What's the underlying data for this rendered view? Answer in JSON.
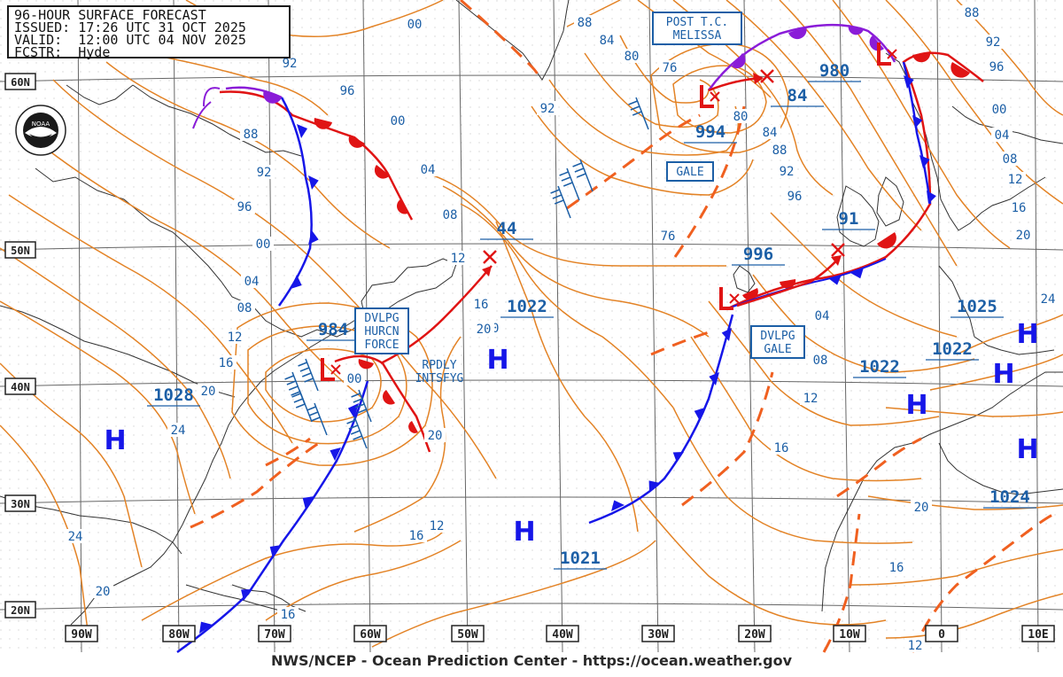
{
  "header": {
    "title": "96-HOUR SURFACE FORECAST",
    "issued": "ISSUED: 17:26 UTC 31 OCT 2025",
    "valid": "VALID:  12:00 UTC 04 NOV 2025",
    "forecaster": "FCSTR:  Hyde"
  },
  "logo": {
    "text": "NOAA"
  },
  "credit": "NWS/NCEP - Ocean Prediction Center - https://ocean.weather.gov",
  "colors": {
    "isobar": "#e38326",
    "isobar_label": "#1c5fa6",
    "grid": "#666666",
    "coast": "#333333",
    "cold_front": "#1616e8",
    "warm_front": "#e01414",
    "occluded_front": "#8a1cd8",
    "trough": "#f06020",
    "pressure_center": "#1616e8",
    "low_marker": "#e01414",
    "boxed_label": "#1c5fa6"
  },
  "axis_labels": {
    "longitude": [
      "90W",
      "80W",
      "70W",
      "60W",
      "50W",
      "40W",
      "30W",
      "20W",
      "10W",
      "0",
      "10E"
    ],
    "latitude": [
      "60N",
      "50N",
      "40N",
      "30N",
      "20N"
    ]
  },
  "isobar_labels": [
    "00",
    "92",
    "96",
    "88",
    "92",
    "96",
    "00",
    "04",
    "08",
    "12",
    "16",
    "20",
    "24",
    "00",
    "04",
    "08",
    "12",
    "16",
    "20",
    "24",
    "20",
    "16",
    "20",
    "92",
    "88",
    "84",
    "80",
    "76",
    "76",
    "80",
    "84",
    "88",
    "92",
    "96",
    "00",
    "04",
    "08",
    "12",
    "16",
    "20",
    "24",
    "04",
    "08",
    "12",
    "16",
    "20",
    "16",
    "12",
    "88",
    "92",
    "96",
    "00",
    "04",
    "08",
    "12",
    "16",
    "20"
  ],
  "pressure_centers": [
    {
      "type": "H",
      "value": "1028"
    },
    {
      "type": "H",
      "value": "1022"
    },
    {
      "type": "H",
      "value": "1021"
    },
    {
      "type": "L",
      "value": "984"
    },
    {
      "type": "L",
      "value": "994"
    },
    {
      "type": "L",
      "value": "996"
    },
    {
      "type": "L",
      "value": "980"
    },
    {
      "type": "H",
      "value": "1022"
    },
    {
      "type": "H",
      "value": "1022"
    },
    {
      "type": "H",
      "value": "1025"
    },
    {
      "type": "H",
      "value": "1024"
    },
    {
      "type": "X",
      "value": "44"
    },
    {
      "type": "X",
      "value": "84"
    },
    {
      "type": "X",
      "value": "91"
    }
  ],
  "boxed_labels": {
    "hurricane_force": [
      "DVLPG",
      "HURCN",
      "FORCE"
    ],
    "post_tc": [
      "POST T.C.",
      "MELISSA"
    ],
    "gale": [
      "GALE"
    ],
    "dvlpg_gale": [
      "DVLPG",
      "GALE"
    ],
    "rapidly": [
      "RPDLY",
      "INTSFYG"
    ]
  }
}
